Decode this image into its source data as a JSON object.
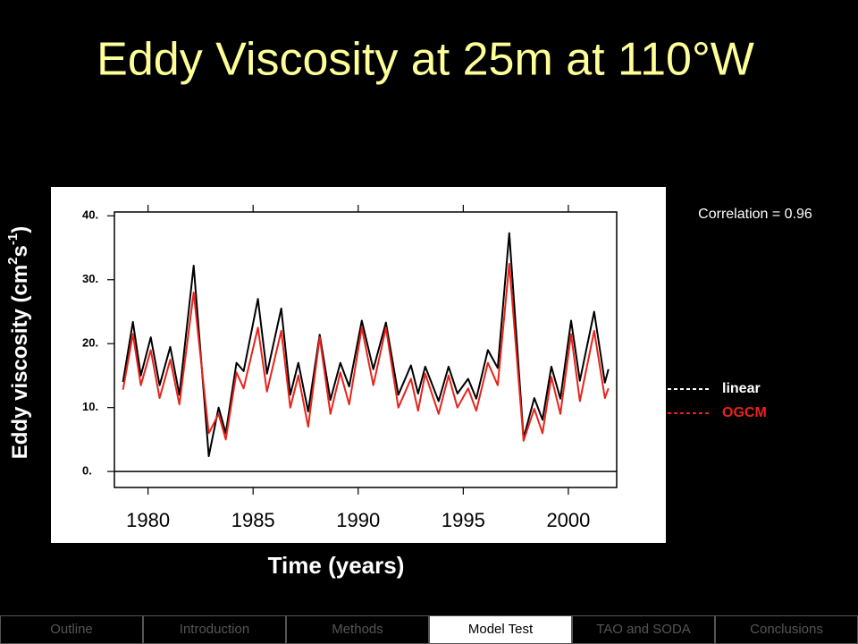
{
  "slide": {
    "title": "Eddy Viscosity at 25m at 110°W"
  },
  "chart_data": {
    "type": "line",
    "annotation": "Correlation = 0.96",
    "y_label": [
      "Eddy viscosity (cm",
      "2",
      "s",
      "-1",
      ")"
    ],
    "x_label": "Time (years)",
    "x": [
      1978.81,
      1979.28,
      1979.66,
      1980.13,
      1980.55,
      1981.06,
      1981.49,
      1982.17,
      1982.89,
      1983.36,
      1983.7,
      1984.21,
      1984.55,
      1985.23,
      1985.66,
      1986.34,
      1986.77,
      1987.15,
      1987.62,
      1988.17,
      1988.68,
      1989.15,
      1989.57,
      1990.17,
      1990.72,
      1991.32,
      1991.91,
      1992.51,
      1992.85,
      1993.19,
      1993.83,
      1994.3,
      1994.72,
      1995.23,
      1995.62,
      1996.17,
      1996.64,
      1997.19,
      1997.87,
      1998.38,
      1998.77,
      1999.19,
      1999.62,
      2000.13,
      2000.55,
      2001.23,
      2001.74,
      2001.91
    ],
    "series": [
      {
        "name": "linear",
        "color": "#000000",
        "legend_color": "#ffffff",
        "values": [
          14,
          23.4,
          15,
          21,
          13.5,
          19.5,
          12,
          32.2,
          2.4,
          10,
          6,
          17,
          15.7,
          27,
          15.3,
          25.5,
          12,
          17,
          9.4,
          21.4,
          11.2,
          17,
          13.3,
          23.6,
          16,
          23.3,
          12,
          16.6,
          12.2,
          16.4,
          11,
          16.4,
          12.2,
          14.5,
          11.4,
          19,
          16.2,
          37.3,
          5.2,
          11.5,
          8.1,
          16.4,
          11.4,
          23.6,
          14.2,
          25,
          13.9,
          16
        ]
      },
      {
        "name": "OGCM",
        "color": "#e8231b",
        "legend_color": "#e8231b",
        "values": [
          12.8,
          21.5,
          13.5,
          19,
          11.5,
          17.5,
          10.5,
          28,
          6,
          9,
          5,
          15.5,
          13,
          22.5,
          12.5,
          22,
          10,
          15,
          7,
          21,
          9,
          15.5,
          10.5,
          22.5,
          13.5,
          22.5,
          10,
          14.5,
          9.5,
          15.3,
          9,
          15,
          10,
          13,
          9.5,
          17,
          13.5,
          32.5,
          4.8,
          9.8,
          6,
          14.8,
          9,
          21.5,
          11,
          22,
          11.5,
          13
        ]
      }
    ],
    "xlim": [
      1978.4,
      2002.3
    ],
    "xticks": [
      1980,
      1985,
      1990,
      1995,
      2000
    ],
    "ylim": [
      -2.5,
      40.6
    ],
    "yticks": [
      {
        "value": 0,
        "label": "0."
      },
      {
        "value": 10,
        "label": "10."
      },
      {
        "value": 20,
        "label": "20."
      },
      {
        "value": 30,
        "label": "30."
      },
      {
        "value": 40,
        "label": "40."
      }
    ],
    "zero_line": 0
  },
  "nav": {
    "tabs": [
      "Outline",
      "Introduction",
      "Methods",
      "Model Test",
      "TAO and SODA",
      "Conclusions"
    ],
    "active": 3
  }
}
